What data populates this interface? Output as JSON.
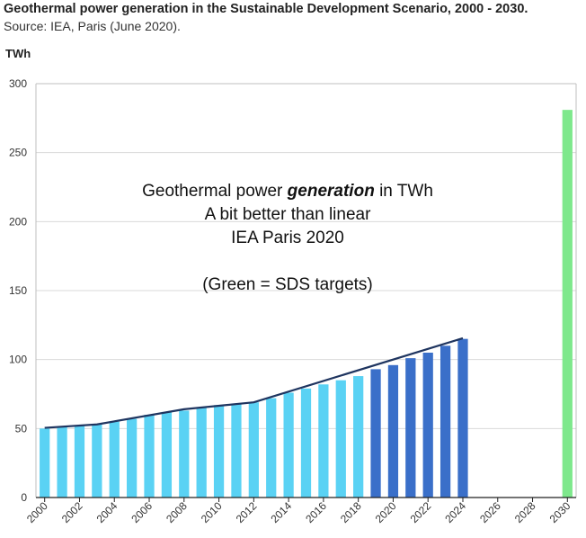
{
  "header": {
    "title": "Geothermal power generation in the Sustainable Development Scenario, 2000 - 2030.",
    "source": "Source: IEA, Paris (June 2020).",
    "unit": "TWh"
  },
  "annotation": {
    "line1_prefix": "Geothermal power ",
    "line1_emph": "generation",
    "line1_suffix": " in TWh",
    "line2": "A bit better than linear",
    "line3": "IEA Paris 2020",
    "line4": "(Green = SDS targets)"
  },
  "chart_data": {
    "type": "bar",
    "title": "Geothermal power generation in the Sustainable Development Scenario, 2000 - 2030.",
    "ylabel": "TWh",
    "ylim": [
      0,
      300
    ],
    "yticks": [
      0,
      50,
      100,
      150,
      200,
      250,
      300
    ],
    "xticks": [
      "2000",
      "2002",
      "2004",
      "2006",
      "2008",
      "2010",
      "2012",
      "2014",
      "2016",
      "2018",
      "2020",
      "2022",
      "2024",
      "2026",
      "2028",
      "2030"
    ],
    "grid": "horizontal",
    "categories": [
      "2000",
      "2001",
      "2002",
      "2003",
      "2004",
      "2005",
      "2006",
      "2007",
      "2008",
      "2009",
      "2010",
      "2011",
      "2012",
      "2013",
      "2014",
      "2015",
      "2016",
      "2017",
      "2018",
      "2019",
      "2020",
      "2021",
      "2022",
      "2023",
      "2024",
      "2025",
      "2026",
      "2027",
      "2028",
      "2029",
      "2030"
    ],
    "series": [
      {
        "color": "#5ad2f4",
        "values": [
          50,
          51,
          52,
          53,
          55,
          57,
          60,
          62,
          63,
          65,
          67,
          68,
          69,
          72,
          76,
          79,
          82,
          85,
          88,
          null,
          null,
          null,
          null,
          null,
          null,
          null,
          null,
          null,
          null,
          null,
          null
        ]
      },
      {
        "color": "#3a6fc9",
        "values": [
          null,
          null,
          null,
          null,
          null,
          null,
          null,
          null,
          null,
          null,
          null,
          null,
          null,
          null,
          null,
          null,
          null,
          null,
          null,
          93,
          96,
          101,
          105,
          110,
          115,
          null,
          null,
          null,
          null,
          null,
          null
        ]
      },
      {
        "color": "#7ee88c",
        "values": [
          null,
          null,
          null,
          null,
          null,
          null,
          null,
          null,
          null,
          null,
          null,
          null,
          null,
          null,
          null,
          null,
          null,
          null,
          null,
          null,
          null,
          null,
          null,
          null,
          null,
          null,
          null,
          null,
          null,
          null,
          281
        ]
      }
    ],
    "trend_line": {
      "color": "#1f3560",
      "x": [
        "2000",
        "2003",
        "2008",
        "2012",
        "2024"
      ],
      "values": [
        50.5,
        53,
        64,
        69,
        115.5
      ]
    }
  }
}
